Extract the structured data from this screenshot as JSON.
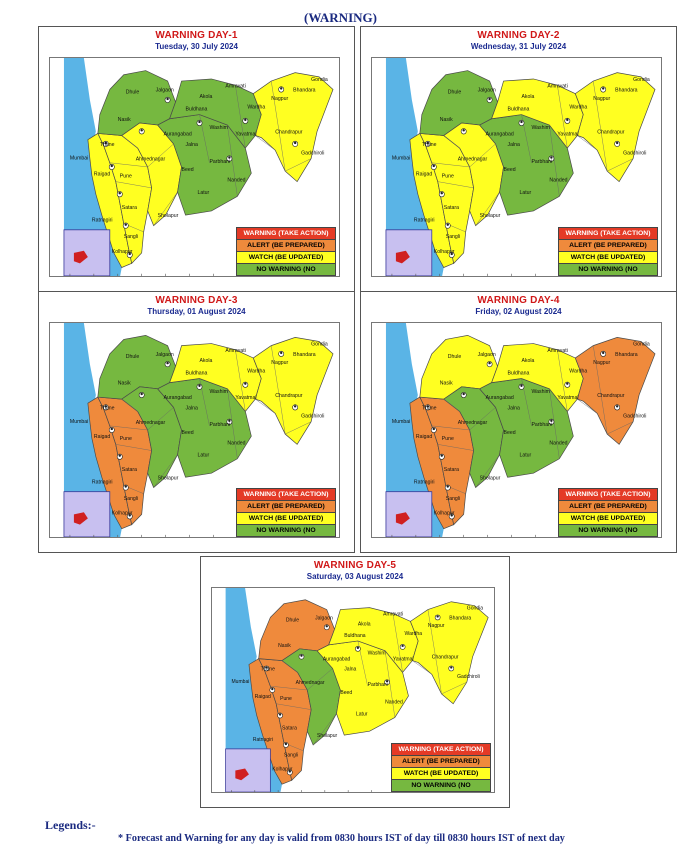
{
  "page_title": "(WARNING)",
  "colors": {
    "warning": "#e43a26",
    "alert": "#ef8a3c",
    "watch": "#ffff21",
    "no_warning": "#76b840",
    "sea": "#5ab4e6",
    "inset": "#c8c0f0",
    "title_red": "#d01818",
    "date_blue": "#1a2a90"
  },
  "legend": {
    "warning": "WARNING (TAKE ACTION)",
    "alert": "ALERT (BE PREPARED)",
    "watch": "WATCH (BE UPDATED)",
    "no_warning": "NO WARNING (NO"
  },
  "map_labels": {
    "mumbai": "Mumbai",
    "thane": "Thane",
    "raigad": "Raigad",
    "pune": "Pune",
    "satara": "Satara",
    "ratnagiri": "Ratnagiri",
    "sangli": "Sangli",
    "kolhapur": "Kolhapur",
    "solapur": "Sholapur",
    "nashik": "Nasik",
    "dhule": "Dhule",
    "jalgaon": "Jalgaon",
    "ahmednagar": "Ahmednagar",
    "aurangabad": "Aurangabad",
    "jalna": "Jalna",
    "beed": "Beed",
    "latur": "Latur",
    "parbhani": "Parbhani",
    "nanded": "Nanded",
    "buldhana": "Buldhana",
    "akola": "Akola",
    "washim": "Washim",
    "amravati": "Amravati",
    "yavatmal": "Yavatmal",
    "wardha": "Wardha",
    "nagpur": "Nagpur",
    "bhandara": "Bhandara",
    "gondia": "Gondia",
    "chandrapur": "Chandrapur",
    "gadchiroli": "Gadchiroli"
  },
  "days": [
    {
      "title": "WARNING DAY-1",
      "date": "Tuesday, 30 July 2024",
      "zones": {
        "konkan": "watch",
        "madhya_west": "watch",
        "madhya_east": "watch",
        "madhya_north": "no_warning",
        "marathwada": "no_warning",
        "vidarbha_west": "no_warning",
        "vidarbha_east": "watch"
      }
    },
    {
      "title": "WARNING DAY-2",
      "date": "Wednesday, 31 July 2024",
      "zones": {
        "konkan": "watch",
        "madhya_west": "watch",
        "madhya_east": "watch",
        "madhya_north": "no_warning",
        "marathwada": "no_warning",
        "vidarbha_west": "watch",
        "vidarbha_east": "watch"
      }
    },
    {
      "title": "WARNING DAY-3",
      "date": "Thursday, 01 August 2024",
      "zones": {
        "konkan": "alert",
        "madhya_west": "alert",
        "madhya_east": "no_warning",
        "madhya_north": "no_warning",
        "marathwada": "no_warning",
        "vidarbha_west": "watch",
        "vidarbha_east": "watch"
      }
    },
    {
      "title": "WARNING DAY-4",
      "date": "Friday, 02 August 2024",
      "zones": {
        "konkan": "alert",
        "madhya_west": "alert",
        "madhya_east": "no_warning",
        "madhya_north": "watch",
        "marathwada": "no_warning",
        "vidarbha_west": "watch",
        "vidarbha_east": "alert"
      }
    },
    {
      "title": "WARNING DAY-5",
      "date": "Saturday, 03 August 2024",
      "zones": {
        "konkan": "alert",
        "madhya_west": "alert",
        "madhya_east": "no_warning",
        "madhya_north": "alert",
        "marathwada": "watch",
        "vidarbha_west": "watch",
        "vidarbha_east": "watch"
      }
    }
  ],
  "legends_heading": "Legends:-",
  "footnote": "* Forecast and Warning for any day is valid from 0830 hours IST of day till 0830 hours IST of next day"
}
